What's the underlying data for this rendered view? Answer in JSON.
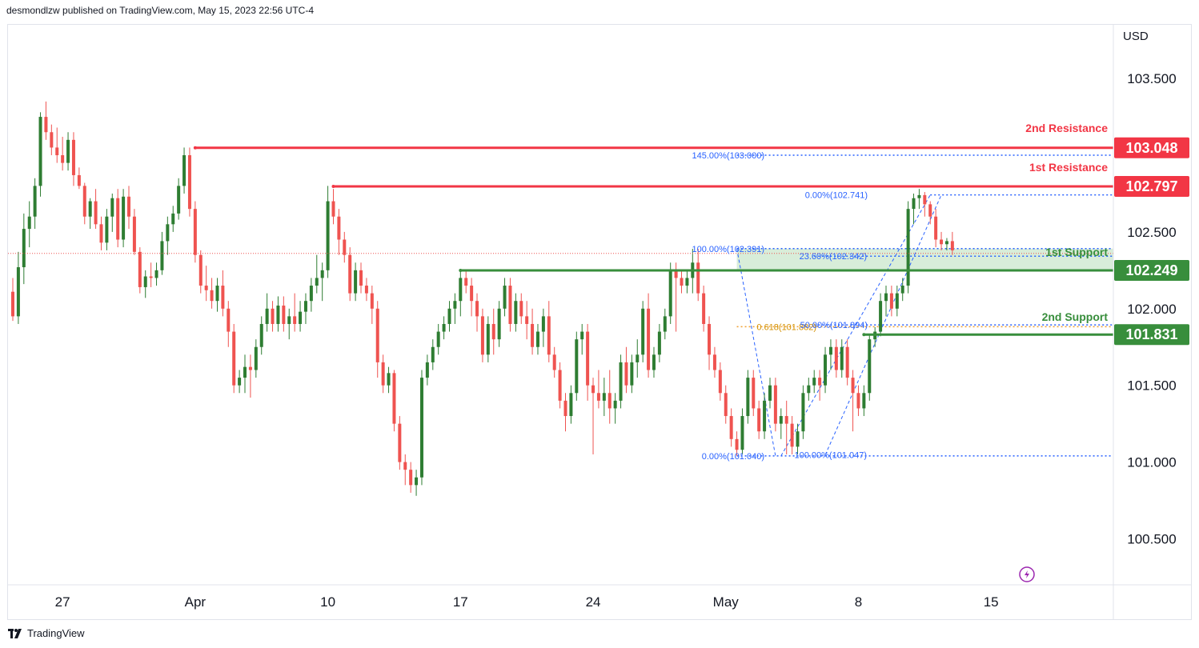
{
  "header": {
    "text": "desmondlzw published on TradingView.com, May 15, 2023 22:56 UTC-4"
  },
  "footer": {
    "brand": "TradingView"
  },
  "colors": {
    "up": "#26a69a",
    "up_body": "#2e7d32",
    "down": "#ef5350",
    "resistance": "#f23645",
    "support": "#388e3c",
    "fib": "#2962ff",
    "fib_golden": "#f0a030",
    "zone": "#c8e6c9",
    "grid": "#ffffff",
    "axis": "#e0e3eb"
  },
  "chart_data": {
    "type": "candlestick",
    "currency_label": "USD",
    "ylim": [
      100.2,
      103.85
    ],
    "y_ticks": [
      "103.500",
      "102.500",
      "102.000",
      "101.500",
      "101.000",
      "100.500"
    ],
    "y_tick_values": [
      103.5,
      102.5,
      102.0,
      101.5,
      101.0,
      100.5
    ],
    "x_labels": [
      "27",
      "Apr",
      "10",
      "17",
      "24",
      "May",
      "8",
      "15"
    ],
    "x_label_bars": [
      9,
      33,
      57,
      81,
      105,
      129,
      153,
      177
    ],
    "total_slots": 200,
    "candles": [
      [
        102.11,
        102.2,
        101.92,
        101.95
      ],
      [
        101.95,
        102.37,
        101.9,
        102.27
      ],
      [
        102.27,
        102.62,
        102.16,
        102.52
      ],
      [
        102.52,
        102.7,
        102.4,
        102.6
      ],
      [
        102.6,
        102.85,
        102.52,
        102.8
      ],
      [
        102.8,
        103.28,
        102.73,
        103.25
      ],
      [
        103.25,
        103.35,
        103.1,
        103.15
      ],
      [
        103.15,
        103.2,
        103.0,
        103.05
      ],
      [
        103.05,
        103.18,
        102.95,
        103.0
      ],
      [
        103.0,
        103.12,
        102.9,
        102.95
      ],
      [
        102.95,
        103.15,
        102.9,
        103.1
      ],
      [
        103.1,
        103.15,
        102.8,
        102.87
      ],
      [
        102.87,
        102.92,
        102.78,
        102.8
      ],
      [
        102.8,
        102.82,
        102.55,
        102.6
      ],
      [
        102.6,
        102.72,
        102.52,
        102.7
      ],
      [
        102.7,
        102.78,
        102.52,
        102.55
      ],
      [
        102.55,
        102.6,
        102.38,
        102.43
      ],
      [
        102.43,
        102.65,
        102.38,
        102.6
      ],
      [
        102.6,
        102.75,
        102.5,
        102.72
      ],
      [
        102.72,
        102.78,
        102.4,
        102.45
      ],
      [
        102.45,
        102.78,
        102.4,
        102.73
      ],
      [
        102.73,
        102.8,
        102.52,
        102.6
      ],
      [
        102.6,
        102.65,
        102.35,
        102.37
      ],
      [
        102.37,
        102.4,
        102.1,
        102.14
      ],
      [
        102.14,
        102.25,
        102.07,
        102.21
      ],
      [
        102.21,
        102.3,
        102.14,
        102.2
      ],
      [
        102.2,
        102.3,
        102.15,
        102.25
      ],
      [
        102.25,
        102.5,
        102.22,
        102.44
      ],
      [
        102.44,
        102.6,
        102.35,
        102.55
      ],
      [
        102.55,
        102.67,
        102.5,
        102.62
      ],
      [
        102.62,
        102.85,
        102.58,
        102.8
      ],
      [
        102.8,
        103.05,
        102.75,
        103.0
      ],
      [
        103.0,
        103.05,
        102.6,
        102.65
      ],
      [
        102.65,
        102.7,
        102.3,
        102.35
      ],
      [
        102.35,
        102.38,
        102.1,
        102.15
      ],
      [
        102.15,
        102.28,
        102.05,
        102.12
      ],
      [
        102.12,
        102.2,
        102.0,
        102.05
      ],
      [
        102.05,
        102.2,
        101.98,
        102.15
      ],
      [
        102.15,
        102.25,
        101.95,
        102.0
      ],
      [
        102.0,
        102.05,
        101.75,
        101.85
      ],
      [
        101.85,
        101.9,
        101.45,
        101.5
      ],
      [
        101.5,
        101.6,
        101.45,
        101.55
      ],
      [
        101.55,
        101.7,
        101.45,
        101.62
      ],
      [
        101.62,
        101.7,
        101.42,
        101.6
      ],
      [
        101.6,
        101.8,
        101.55,
        101.75
      ],
      [
        101.75,
        101.95,
        101.7,
        101.9
      ],
      [
        101.9,
        102.1,
        101.85,
        102.0
      ],
      [
        102.0,
        102.05,
        101.85,
        101.9
      ],
      [
        101.9,
        102.08,
        101.85,
        102.02
      ],
      [
        102.02,
        102.08,
        101.85,
        101.9
      ],
      [
        101.9,
        102.0,
        101.8,
        101.95
      ],
      [
        101.95,
        102.1,
        101.85,
        101.9
      ],
      [
        101.9,
        102.05,
        101.85,
        101.98
      ],
      [
        101.98,
        102.1,
        101.9,
        102.05
      ],
      [
        102.05,
        102.2,
        101.98,
        102.15
      ],
      [
        102.15,
        102.35,
        102.1,
        102.2
      ],
      [
        102.2,
        102.3,
        102.05,
        102.25
      ],
      [
        102.25,
        102.8,
        102.2,
        102.7
      ],
      [
        102.7,
        102.78,
        102.55,
        102.6
      ],
      [
        102.6,
        102.65,
        102.35,
        102.45
      ],
      [
        102.45,
        102.5,
        102.3,
        102.35
      ],
      [
        102.35,
        102.4,
        102.05,
        102.1
      ],
      [
        102.1,
        102.3,
        102.05,
        102.25
      ],
      [
        102.25,
        102.3,
        102.1,
        102.15
      ],
      [
        102.15,
        102.2,
        102.05,
        102.1
      ],
      [
        102.1,
        102.15,
        101.9,
        102.0
      ],
      [
        102.0,
        102.05,
        101.55,
        101.65
      ],
      [
        101.65,
        101.7,
        101.45,
        101.5
      ],
      [
        101.5,
        101.62,
        101.45,
        101.58
      ],
      [
        101.58,
        101.6,
        101.2,
        101.25
      ],
      [
        101.25,
        101.3,
        100.95,
        101.0
      ],
      [
        101.0,
        101.05,
        100.85,
        100.95
      ],
      [
        100.95,
        101.0,
        100.8,
        100.85
      ],
      [
        100.85,
        100.95,
        100.78,
        100.9
      ],
      [
        100.9,
        101.6,
        100.85,
        101.55
      ],
      [
        101.55,
        101.7,
        101.5,
        101.65
      ],
      [
        101.65,
        101.8,
        101.6,
        101.75
      ],
      [
        101.75,
        101.9,
        101.7,
        101.85
      ],
      [
        101.85,
        101.95,
        101.8,
        101.9
      ],
      [
        101.9,
        102.05,
        101.85,
        102.0
      ],
      [
        102.0,
        102.1,
        101.9,
        102.05
      ],
      [
        102.05,
        102.25,
        101.95,
        102.2
      ],
      [
        102.2,
        102.25,
        102.1,
        102.15
      ],
      [
        102.15,
        102.2,
        101.95,
        102.05
      ],
      [
        102.05,
        102.1,
        101.85,
        101.95
      ],
      [
        101.95,
        102.0,
        101.65,
        101.7
      ],
      [
        101.7,
        101.95,
        101.65,
        101.9
      ],
      [
        101.9,
        102.0,
        101.7,
        101.8
      ],
      [
        101.8,
        102.05,
        101.75,
        102.0
      ],
      [
        102.0,
        102.2,
        101.95,
        102.15
      ],
      [
        102.15,
        102.2,
        101.85,
        101.9
      ],
      [
        101.9,
        102.1,
        101.85,
        102.05
      ],
      [
        102.05,
        102.1,
        101.9,
        101.95
      ],
      [
        101.95,
        102.05,
        101.8,
        101.9
      ],
      [
        101.9,
        102.0,
        101.7,
        101.75
      ],
      [
        101.75,
        101.9,
        101.7,
        101.85
      ],
      [
        101.85,
        102.0,
        101.75,
        101.95
      ],
      [
        101.95,
        102.05,
        101.65,
        101.7
      ],
      [
        101.7,
        101.75,
        101.55,
        101.6
      ],
      [
        101.6,
        101.65,
        101.35,
        101.4
      ],
      [
        101.4,
        101.45,
        101.2,
        101.3
      ],
      [
        101.3,
        101.5,
        101.25,
        101.45
      ],
      [
        101.45,
        101.85,
        101.4,
        101.8
      ],
      [
        101.8,
        101.9,
        101.7,
        101.85
      ],
      [
        101.85,
        101.9,
        101.4,
        101.5
      ],
      [
        101.5,
        101.55,
        101.05,
        101.45
      ],
      [
        101.45,
        101.6,
        101.35,
        101.4
      ],
      [
        101.4,
        101.55,
        101.3,
        101.45
      ],
      [
        101.45,
        101.6,
        101.25,
        101.35
      ],
      [
        101.35,
        101.45,
        101.25,
        101.4
      ],
      [
        101.4,
        101.7,
        101.35,
        101.65
      ],
      [
        101.65,
        101.75,
        101.45,
        101.5
      ],
      [
        101.5,
        101.7,
        101.45,
        101.65
      ],
      [
        101.65,
        101.8,
        101.55,
        101.7
      ],
      [
        101.7,
        102.05,
        101.65,
        102.0
      ],
      [
        102.0,
        102.1,
        101.55,
        101.6
      ],
      [
        101.6,
        101.75,
        101.55,
        101.7
      ],
      [
        101.7,
        101.9,
        101.65,
        101.85
      ],
      [
        101.85,
        102.0,
        101.8,
        101.95
      ],
      [
        101.95,
        102.3,
        101.9,
        102.25
      ],
      [
        102.25,
        102.3,
        101.85,
        102.2
      ],
      [
        102.2,
        102.25,
        102.1,
        102.15
      ],
      [
        102.15,
        102.25,
        102.1,
        102.2
      ],
      [
        102.2,
        102.39,
        102.1,
        102.3
      ],
      [
        102.3,
        102.39,
        102.05,
        102.1
      ],
      [
        102.1,
        102.15,
        101.85,
        101.9
      ],
      [
        101.9,
        101.95,
        101.6,
        101.7
      ],
      [
        101.7,
        101.75,
        101.55,
        101.6
      ],
      [
        101.6,
        101.65,
        101.4,
        101.45
      ],
      [
        101.45,
        101.5,
        101.25,
        101.3
      ],
      [
        101.3,
        101.35,
        101.1,
        101.15
      ],
      [
        101.15,
        101.2,
        101.04,
        101.08
      ],
      [
        101.08,
        101.35,
        101.05,
        101.3
      ],
      [
        101.3,
        101.6,
        101.25,
        101.55
      ],
      [
        101.55,
        101.6,
        101.3,
        101.35
      ],
      [
        101.35,
        101.4,
        101.15,
        101.2
      ],
      [
        101.2,
        101.45,
        101.15,
        101.4
      ],
      [
        101.4,
        101.55,
        101.35,
        101.5
      ],
      [
        101.5,
        101.55,
        101.2,
        101.25
      ],
      [
        101.25,
        101.35,
        101.15,
        101.3
      ],
      [
        101.3,
        101.4,
        101.05,
        101.25
      ],
      [
        101.25,
        101.3,
        101.05,
        101.1
      ],
      [
        101.1,
        101.25,
        101.05,
        101.2
      ],
      [
        101.2,
        101.5,
        101.15,
        101.45
      ],
      [
        101.45,
        101.55,
        101.4,
        101.5
      ],
      [
        101.5,
        101.6,
        101.45,
        101.55
      ],
      [
        101.55,
        101.6,
        101.4,
        101.5
      ],
      [
        101.5,
        101.75,
        101.45,
        101.7
      ],
      [
        101.7,
        101.8,
        101.6,
        101.75
      ],
      [
        101.75,
        101.8,
        101.55,
        101.6
      ],
      [
        101.6,
        101.8,
        101.55,
        101.75
      ],
      [
        101.75,
        101.8,
        101.5,
        101.55
      ],
      [
        101.55,
        101.6,
        101.2,
        101.45
      ],
      [
        101.45,
        101.5,
        101.3,
        101.35
      ],
      [
        101.35,
        101.5,
        101.3,
        101.45
      ],
      [
        101.45,
        101.83,
        101.4,
        101.8
      ],
      [
        101.8,
        101.88,
        101.75,
        101.85
      ],
      [
        101.85,
        102.1,
        101.82,
        102.05
      ],
      [
        102.05,
        102.15,
        101.95,
        102.1
      ],
      [
        102.1,
        102.15,
        101.95,
        102.0
      ],
      [
        102.0,
        102.15,
        101.95,
        102.1
      ],
      [
        102.1,
        102.2,
        102.05,
        102.15
      ],
      [
        102.15,
        102.7,
        102.1,
        102.65
      ],
      [
        102.65,
        102.75,
        102.55,
        102.72
      ],
      [
        102.72,
        102.78,
        102.65,
        102.74
      ],
      [
        102.74,
        102.76,
        102.6,
        102.68
      ],
      [
        102.68,
        102.7,
        102.55,
        102.6
      ],
      [
        102.6,
        102.65,
        102.4,
        102.45
      ],
      [
        102.45,
        102.5,
        102.38,
        102.42
      ],
      [
        102.42,
        102.46,
        102.38,
        102.44
      ],
      [
        102.44,
        102.5,
        102.35,
        102.38
      ]
    ],
    "levels": {
      "resistance_2": {
        "label": "2nd Resistance",
        "value": "103.048",
        "y": 103.048
      },
      "resistance_1": {
        "label": "1st Resistance",
        "value": "102.797",
        "y": 102.797
      },
      "support_1": {
        "label": "1st Support",
        "value": "102.249",
        "y": 102.249
      },
      "support_2": {
        "label": "2nd Support",
        "value": "101.831",
        "y": 101.831
      },
      "current_price": 102.36
    },
    "fib_labels": {
      "f145": {
        "text": "145.00%(103.000)",
        "y": 103.0
      },
      "f0top": {
        "text": "0.00%(102.741)",
        "y": 102.741
      },
      "f100top": {
        "text": "100.00%(102.391)",
        "y": 102.391
      },
      "f2360": {
        "text": "23.60%(102.342)",
        "y": 102.342
      },
      "f618": {
        "text": "0.618(101.882)",
        "y": 101.882
      },
      "f50": {
        "text": "50.00%(101.894)",
        "y": 101.894
      },
      "f0bot": {
        "text": "0.00%(101.040)",
        "y": 101.04
      },
      "f100bot": {
        "text": "100.00%(101.047)",
        "y": 101.047
      }
    }
  }
}
